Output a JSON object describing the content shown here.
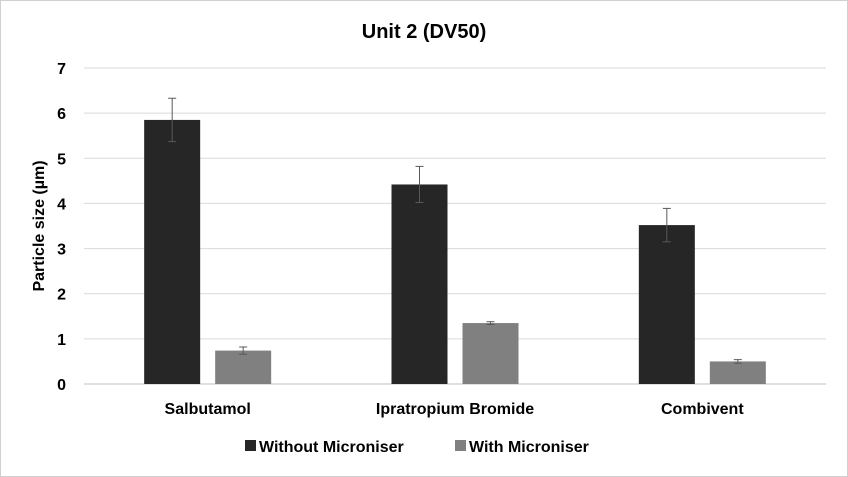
{
  "chart_data": {
    "type": "bar",
    "title": "Unit 2 (DV50)",
    "xlabel": "",
    "ylabel": "Particle size (µm)",
    "ylim": [
      0,
      7
    ],
    "yticks": [
      0,
      1,
      2,
      3,
      4,
      5,
      6,
      7
    ],
    "grid": true,
    "legend_position": "bottom",
    "categories": [
      "Salbutamol",
      "Ipratropium Bromide",
      "Combivent"
    ],
    "series": [
      {
        "name": "Without Microniser",
        "color": "#262626",
        "values": [
          5.85,
          4.42,
          3.52
        ],
        "errors": [
          0.48,
          0.4,
          0.37
        ]
      },
      {
        "name": "With Microniser",
        "color": "#808080",
        "values": [
          0.74,
          1.35,
          0.5
        ],
        "errors": [
          0.08,
          0.03,
          0.04
        ]
      }
    ]
  }
}
